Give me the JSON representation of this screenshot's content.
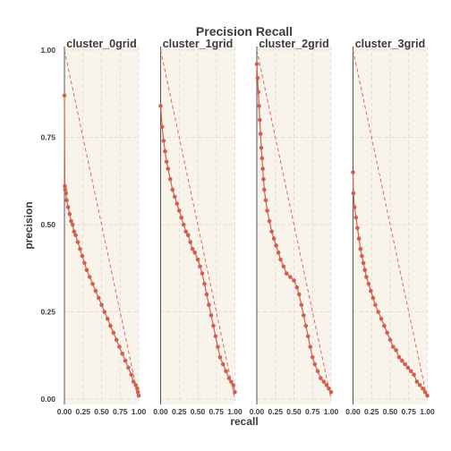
{
  "chart_data": {
    "type": "line",
    "title": "Precision Recall",
    "xlabel": "recall",
    "ylabel": "precision",
    "xlim": [
      0,
      1
    ],
    "ylim": [
      0,
      1
    ],
    "x_ticks": [
      "0.00",
      "0.25",
      "0.50",
      "0.75",
      "1.00"
    ],
    "y_ticks": [
      "0.00",
      "0.25",
      "0.50",
      "0.75",
      "1.00"
    ],
    "grid": true,
    "reference_line": {
      "x": [
        0,
        1
      ],
      "y": [
        1,
        0
      ]
    },
    "color": "#d45e4e",
    "panel_background": "#f8f4ec",
    "panels": [
      {
        "label": "cluster_0grid",
        "points": [
          [
            0.0,
            0.87
          ],
          [
            0.005,
            0.61
          ],
          [
            0.01,
            0.6
          ],
          [
            0.02,
            0.59
          ],
          [
            0.03,
            0.57
          ],
          [
            0.05,
            0.55
          ],
          [
            0.07,
            0.53
          ],
          [
            0.09,
            0.51
          ],
          [
            0.11,
            0.5
          ],
          [
            0.13,
            0.48
          ],
          [
            0.15,
            0.47
          ],
          [
            0.18,
            0.45
          ],
          [
            0.21,
            0.43
          ],
          [
            0.24,
            0.41
          ],
          [
            0.27,
            0.39
          ],
          [
            0.3,
            0.37
          ],
          [
            0.34,
            0.35
          ],
          [
            0.38,
            0.33
          ],
          [
            0.42,
            0.31
          ],
          [
            0.46,
            0.29
          ],
          [
            0.5,
            0.27
          ],
          [
            0.54,
            0.25
          ],
          [
            0.58,
            0.23
          ],
          [
            0.62,
            0.21
          ],
          [
            0.66,
            0.19
          ],
          [
            0.7,
            0.17
          ],
          [
            0.74,
            0.15
          ],
          [
            0.78,
            0.13
          ],
          [
            0.82,
            0.11
          ],
          [
            0.86,
            0.09
          ],
          [
            0.9,
            0.07
          ],
          [
            0.93,
            0.05
          ],
          [
            0.96,
            0.04
          ],
          [
            0.98,
            0.03
          ],
          [
            0.99,
            0.02
          ],
          [
            1.0,
            0.01
          ]
        ]
      },
      {
        "label": "cluster_1grid",
        "points": [
          [
            0.0,
            0.84
          ],
          [
            0.02,
            0.78
          ],
          [
            0.04,
            0.74
          ],
          [
            0.06,
            0.71
          ],
          [
            0.08,
            0.68
          ],
          [
            0.1,
            0.66
          ],
          [
            0.13,
            0.63
          ],
          [
            0.16,
            0.6
          ],
          [
            0.19,
            0.58
          ],
          [
            0.22,
            0.56
          ],
          [
            0.25,
            0.54
          ],
          [
            0.28,
            0.52
          ],
          [
            0.31,
            0.5
          ],
          [
            0.34,
            0.48
          ],
          [
            0.37,
            0.47
          ],
          [
            0.4,
            0.45
          ],
          [
            0.43,
            0.43
          ],
          [
            0.46,
            0.42
          ],
          [
            0.5,
            0.4
          ],
          [
            0.53,
            0.38
          ],
          [
            0.56,
            0.36
          ],
          [
            0.59,
            0.33
          ],
          [
            0.62,
            0.3
          ],
          [
            0.65,
            0.27
          ],
          [
            0.68,
            0.24
          ],
          [
            0.71,
            0.21
          ],
          [
            0.74,
            0.18
          ],
          [
            0.77,
            0.15
          ],
          [
            0.8,
            0.12
          ],
          [
            0.84,
            0.1
          ],
          [
            0.88,
            0.08
          ],
          [
            0.92,
            0.06
          ],
          [
            0.95,
            0.05
          ],
          [
            0.98,
            0.04
          ],
          [
            1.0,
            0.02
          ]
        ]
      },
      {
        "label": "cluster_2grid",
        "points": [
          [
            0.0,
            0.96
          ],
          [
            0.01,
            0.92
          ],
          [
            0.02,
            0.88
          ],
          [
            0.03,
            0.84
          ],
          [
            0.04,
            0.8
          ],
          [
            0.05,
            0.76
          ],
          [
            0.06,
            0.72
          ],
          [
            0.07,
            0.69
          ],
          [
            0.08,
            0.66
          ],
          [
            0.09,
            0.63
          ],
          [
            0.1,
            0.6
          ],
          [
            0.12,
            0.57
          ],
          [
            0.14,
            0.54
          ],
          [
            0.17,
            0.51
          ],
          [
            0.2,
            0.48
          ],
          [
            0.23,
            0.46
          ],
          [
            0.26,
            0.44
          ],
          [
            0.29,
            0.42
          ],
          [
            0.32,
            0.4
          ],
          [
            0.36,
            0.38
          ],
          [
            0.4,
            0.36
          ],
          [
            0.45,
            0.35
          ],
          [
            0.5,
            0.34
          ],
          [
            0.54,
            0.32
          ],
          [
            0.57,
            0.3
          ],
          [
            0.6,
            0.27
          ],
          [
            0.63,
            0.24
          ],
          [
            0.66,
            0.21
          ],
          [
            0.69,
            0.18
          ],
          [
            0.72,
            0.15
          ],
          [
            0.75,
            0.12
          ],
          [
            0.78,
            0.1
          ],
          [
            0.82,
            0.08
          ],
          [
            0.86,
            0.06
          ],
          [
            0.9,
            0.05
          ],
          [
            0.94,
            0.04
          ],
          [
            0.97,
            0.03
          ],
          [
            1.0,
            0.02
          ]
        ]
      },
      {
        "label": "cluster_3grid",
        "points": [
          [
            0.0,
            0.65
          ],
          [
            0.005,
            0.59
          ],
          [
            0.02,
            0.55
          ],
          [
            0.04,
            0.52
          ],
          [
            0.06,
            0.49
          ],
          [
            0.08,
            0.46
          ],
          [
            0.1,
            0.43
          ],
          [
            0.12,
            0.41
          ],
          [
            0.14,
            0.39
          ],
          [
            0.16,
            0.37
          ],
          [
            0.18,
            0.35
          ],
          [
            0.21,
            0.33
          ],
          [
            0.24,
            0.31
          ],
          [
            0.27,
            0.29
          ],
          [
            0.3,
            0.27
          ],
          [
            0.34,
            0.25
          ],
          [
            0.38,
            0.23
          ],
          [
            0.42,
            0.21
          ],
          [
            0.46,
            0.19
          ],
          [
            0.5,
            0.17
          ],
          [
            0.54,
            0.15
          ],
          [
            0.58,
            0.14
          ],
          [
            0.62,
            0.12
          ],
          [
            0.66,
            0.11
          ],
          [
            0.7,
            0.1
          ],
          [
            0.74,
            0.09
          ],
          [
            0.78,
            0.08
          ],
          [
            0.82,
            0.07
          ],
          [
            0.86,
            0.05
          ],
          [
            0.9,
            0.04
          ],
          [
            0.94,
            0.03
          ],
          [
            0.97,
            0.02
          ],
          [
            1.0,
            0.01
          ]
        ]
      }
    ]
  }
}
